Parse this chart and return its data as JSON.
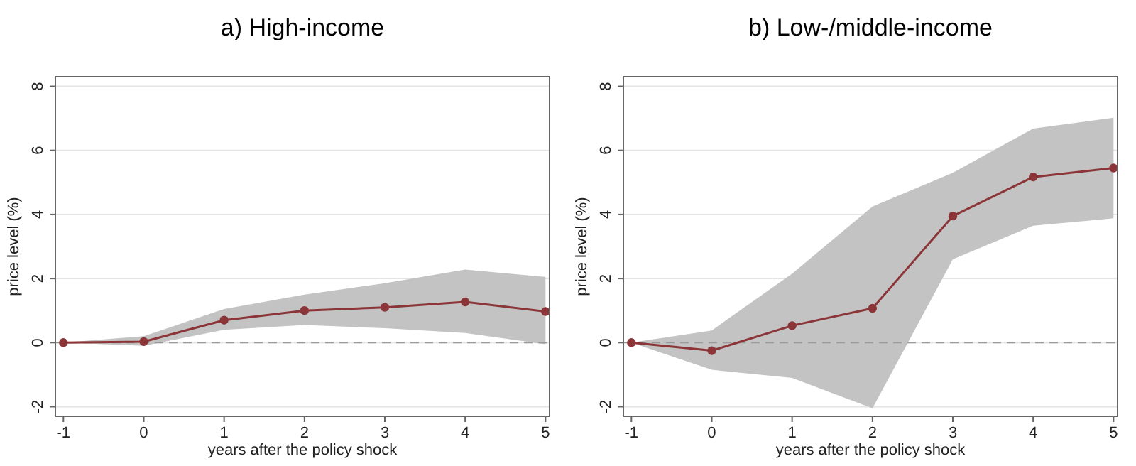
{
  "chart_data": [
    {
      "type": "line",
      "title": "a) High-income",
      "xlabel": "years after the policy shock",
      "ylabel": "price level (%)",
      "x": [
        -1,
        0,
        1,
        2,
        3,
        4,
        5
      ],
      "series": [
        {
          "color": "#8b3538",
          "values": [
            0,
            0.03,
            0.7,
            1.0,
            1.1,
            1.27,
            0.97
          ],
          "lower": [
            0,
            -0.1,
            0.4,
            0.55,
            0.45,
            0.3,
            -0.05
          ],
          "upper": [
            0,
            0.2,
            1.05,
            1.5,
            1.85,
            2.28,
            2.05
          ]
        }
      ],
      "xlim": [
        -1.1,
        5.05
      ],
      "xticks": [
        -1,
        0,
        1,
        2,
        3,
        4,
        5
      ],
      "ylim": [
        -2.3,
        8.3
      ],
      "yticks": [
        -2,
        0,
        2,
        4,
        6,
        8
      ],
      "grid": "y",
      "marker": "circle",
      "line_style": "solid",
      "ref_lines": [
        {
          "axis": "y",
          "value": 0,
          "color": "#999999",
          "line_style": "dashed"
        }
      ]
    },
    {
      "type": "line",
      "title": "b) Low-/middle-income",
      "xlabel": "years after the policy shock",
      "ylabel": "price level (%)",
      "x": [
        -1,
        0,
        1,
        2,
        3,
        4,
        5
      ],
      "series": [
        {
          "color": "#8b3538",
          "values": [
            0,
            -0.25,
            0.53,
            1.07,
            3.95,
            5.17,
            5.45
          ],
          "lower": [
            0,
            -0.85,
            -1.1,
            -2.05,
            2.6,
            3.65,
            3.88
          ],
          "upper": [
            0,
            0.38,
            2.15,
            4.25,
            5.3,
            6.68,
            7.02
          ]
        }
      ],
      "xlim": [
        -1.1,
        5.05
      ],
      "xticks": [
        -1,
        0,
        1,
        2,
        3,
        4,
        5
      ],
      "ylim": [
        -2.3,
        8.3
      ],
      "yticks": [
        -2,
        0,
        2,
        4,
        6,
        8
      ],
      "grid": "y",
      "marker": "circle",
      "line_style": "solid",
      "ref_lines": [
        {
          "axis": "y",
          "value": 0,
          "color": "#999999",
          "line_style": "dashed"
        }
      ]
    }
  ]
}
